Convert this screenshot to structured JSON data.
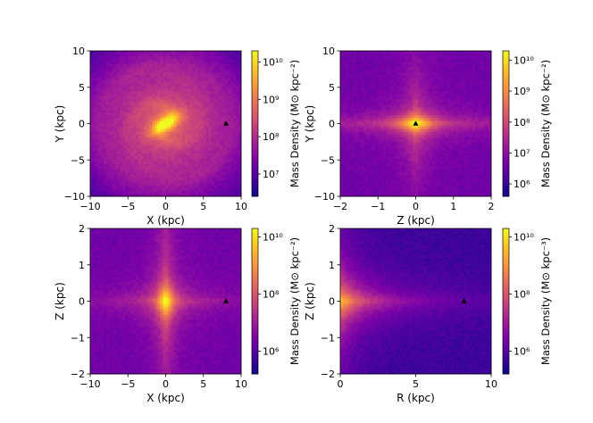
{
  "chart_data": [
    {
      "type": "heatmap",
      "map": "disk",
      "xlabel": "X (kpc)",
      "ylabel": "Y (kpc)",
      "xlim": [
        -10,
        10
      ],
      "ylim": [
        -10,
        10
      ],
      "xticks": [
        "−10",
        "−5",
        "0",
        "5",
        "10"
      ],
      "yticks": [
        "−10",
        "−5",
        "0",
        "5",
        "10"
      ],
      "colorbar": {
        "label": "Mass Density (M⊙ kpc⁻²)",
        "range_log10": [
          6.4,
          10.3
        ],
        "ticks": [
          {
            "v": 7,
            "t": "10⁷"
          },
          {
            "v": 8,
            "t": "10⁸"
          },
          {
            "v": 9,
            "t": "10⁹"
          },
          {
            "v": 10,
            "t": "10¹⁰"
          }
        ]
      },
      "marker": {
        "x": 8.0,
        "y": 0.0,
        "shape": "triangle"
      }
    },
    {
      "type": "heatmap",
      "map": "cross",
      "xlabel": "Z (kpc)",
      "ylabel": "Y (kpc)",
      "xlim": [
        -2,
        2
      ],
      "ylim": [
        -10,
        10
      ],
      "xticks": [
        "−2",
        "−1",
        "0",
        "1",
        "2"
      ],
      "yticks": [
        "−10",
        "−5",
        "0",
        "5",
        "10"
      ],
      "colorbar": {
        "label": "Mass Density (M⊙ kpc⁻²)",
        "range_log10": [
          5.6,
          10.3
        ],
        "ticks": [
          {
            "v": 6,
            "t": "10⁶"
          },
          {
            "v": 7,
            "t": "10⁷"
          },
          {
            "v": 8,
            "t": "10⁸"
          },
          {
            "v": 9,
            "t": "10⁹"
          },
          {
            "v": 10,
            "t": "10¹⁰"
          }
        ]
      },
      "marker": {
        "x": 0.0,
        "y": 0.0,
        "shape": "triangle"
      }
    },
    {
      "type": "heatmap",
      "map": "cross",
      "xlabel": "X (kpc)",
      "ylabel": "Z (kpc)",
      "xlim": [
        -10,
        10
      ],
      "ylim": [
        -2,
        2
      ],
      "xticks": [
        "−10",
        "−5",
        "0",
        "5",
        "10"
      ],
      "yticks": [
        "−2",
        "−1",
        "0",
        "1",
        "2"
      ],
      "colorbar": {
        "label": "Mass Density (M⊙ kpc⁻²)",
        "range_log10": [
          5.2,
          10.3
        ],
        "ticks": [
          {
            "v": 6,
            "t": "10⁶"
          },
          {
            "v": 8,
            "t": "10⁸"
          },
          {
            "v": 10,
            "t": "10¹⁰"
          }
        ]
      },
      "marker": {
        "x": 8.0,
        "y": 0.0,
        "shape": "triangle"
      }
    },
    {
      "type": "heatmap",
      "map": "rz",
      "xlabel": "R (kpc)",
      "ylabel": "Z (kpc)",
      "xlim": [
        0,
        10
      ],
      "ylim": [
        -2,
        2
      ],
      "xticks": [
        "0",
        "5",
        "10"
      ],
      "yticks": [
        "−2",
        "−1",
        "0",
        "1",
        "2"
      ],
      "colorbar": {
        "label": "Mass Density (M⊙ kpc⁻³)",
        "range_log10": [
          5.2,
          10.3
        ],
        "ticks": [
          {
            "v": 6,
            "t": "10⁶"
          },
          {
            "v": 8,
            "t": "10⁸"
          },
          {
            "v": 10,
            "t": "10¹⁰"
          }
        ]
      },
      "marker": {
        "x": 8.2,
        "y": 0.0,
        "shape": "triangle"
      }
    }
  ]
}
